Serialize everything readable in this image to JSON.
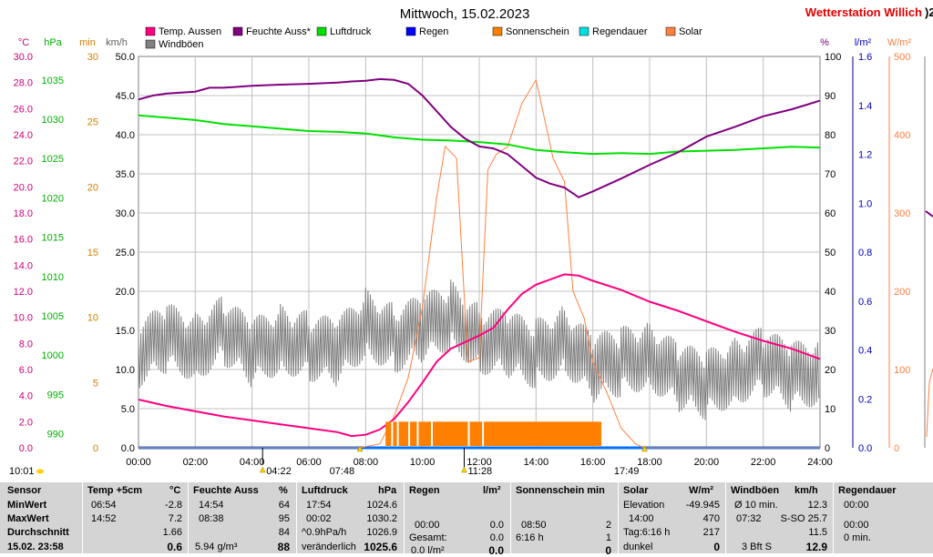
{
  "header": {
    "title": "Mittwoch, 15.02.2023",
    "station": "Wetterstation Willich",
    "station_suffix": ")2"
  },
  "legend": [
    {
      "label": "Temp. Aussen",
      "color": "#ff0080"
    },
    {
      "label": "Feuchte Auss*",
      "color": "#800080"
    },
    {
      "label": "Luftdruck",
      "color": "#00e000"
    },
    {
      "label": "Regen",
      "color": "#0000ff"
    },
    {
      "label": "Sonnenschein",
      "color": "#ff8000"
    },
    {
      "label": "Regendauer",
      "color": "#00e0e0"
    },
    {
      "label": "Solar",
      "color": "#ff8040"
    },
    {
      "label": "Windböen",
      "color": "#808080"
    }
  ],
  "axes": {
    "left_units": {
      "celsius": "°C",
      "hpa": "hPa",
      "min": "min",
      "kmh": "km/h"
    },
    "right_units": {
      "percent": "%",
      "rain": "l/m²",
      "solar": "W/m²"
    },
    "celsius_ticks": [
      "30.0",
      "28.0",
      "26.0",
      "24.0",
      "22.0",
      "20.0",
      "18.0",
      "16.0",
      "14.0",
      "12.0",
      "10.0",
      "8.0",
      "6.0",
      "4.0",
      "2.0",
      "0.0"
    ],
    "hpa_ticks": [
      "1035",
      "1030",
      "1025",
      "1020",
      "1015",
      "1010",
      "1005",
      "1000",
      "995",
      "990"
    ],
    "min_ticks": [
      "30",
      "25",
      "20",
      "15",
      "10",
      "5",
      "0"
    ],
    "kmh_ticks": [
      "50.0",
      "45.0",
      "40.0",
      "35.0",
      "30.0",
      "25.0",
      "20.0",
      "15.0",
      "10.0",
      "5.0",
      "0.0"
    ],
    "percent_ticks": [
      "100",
      "90",
      "80",
      "70",
      "60",
      "50",
      "40",
      "30",
      "20",
      "10",
      "0"
    ],
    "rain_ticks": [
      "1.6",
      "1.4",
      "1.2",
      "1.0",
      "0.8",
      "0.6",
      "0.4",
      "0.2",
      "0.0"
    ],
    "solar_ticks": [
      "500",
      "400",
      "300",
      "200",
      "100",
      "0"
    ],
    "time_ticks": [
      "00:00",
      "02:00",
      "04:00",
      "06:00",
      "08:00",
      "10:00",
      "12:00",
      "14:00",
      "16:00",
      "18:00",
      "20:00",
      "22:00",
      "24:00"
    ]
  },
  "events": {
    "start": "10:01",
    "moonrise": "04:22",
    "sunrise": "07:48",
    "noon": "11:28",
    "sunset": "17:49"
  },
  "chart_data": {
    "type": "line",
    "x_range": [
      "00:00",
      "24:00"
    ],
    "series": [
      {
        "name": "Temp. Aussen",
        "axis": "°C",
        "color": "#ff0080",
        "x": [
          0,
          1,
          2,
          3,
          4,
          5,
          6,
          7,
          7.5,
          8,
          8.5,
          9,
          9.5,
          10,
          10.5,
          11,
          11.5,
          12,
          12.5,
          13,
          13.5,
          14,
          14.5,
          15,
          15.5,
          16,
          17,
          18,
          19,
          20,
          21,
          22,
          23,
          24
        ],
        "y": [
          3.7,
          3.2,
          2.8,
          2.4,
          2.1,
          1.8,
          1.5,
          1.2,
          0.9,
          1.0,
          1.4,
          2.2,
          3.5,
          5.0,
          6.6,
          7.6,
          8.1,
          8.6,
          9.2,
          10.6,
          11.8,
          12.5,
          12.9,
          13.3,
          13.2,
          12.8,
          12.1,
          11.2,
          10.5,
          9.7,
          8.9,
          8.2,
          7.6,
          6.8
        ]
      },
      {
        "name": "Feuchte Auss*",
        "axis": "%",
        "color": "#800080",
        "x": [
          0,
          0.5,
          1,
          2,
          2.5,
          3,
          4,
          5,
          6,
          7,
          7.5,
          8,
          8.5,
          9,
          9.5,
          10,
          10.5,
          11,
          11.5,
          12,
          12.5,
          13,
          13.5,
          14,
          14.5,
          15,
          15.5,
          16,
          17,
          18,
          19,
          20,
          21,
          22,
          23,
          24
        ],
        "y": [
          89,
          90,
          90.5,
          91,
          92,
          92,
          92.5,
          92.8,
          93,
          93.3,
          93.6,
          93.8,
          94.2,
          94,
          93,
          90,
          86,
          82,
          79,
          77,
          76.5,
          75,
          72,
          69,
          67.5,
          66.5,
          64,
          65.5,
          68.8,
          72.3,
          75.5,
          79.5,
          82,
          84.7,
          86.5,
          88.7
        ]
      },
      {
        "name": "Luftdruck",
        "axis": "hPa",
        "color": "#00e000",
        "x": [
          0,
          1,
          2,
          3,
          4,
          5,
          6,
          7,
          8,
          9,
          10,
          11,
          12,
          13,
          14,
          15,
          16,
          17,
          18,
          19,
          20,
          21,
          22,
          23,
          24
        ],
        "y": [
          1030.5,
          1030.2,
          1029.9,
          1029.4,
          1029.1,
          1028.8,
          1028.5,
          1028.4,
          1028.2,
          1027.7,
          1027.4,
          1027.3,
          1027.1,
          1026.8,
          1026.1,
          1025.8,
          1025.6,
          1025.7,
          1025.6,
          1025.9,
          1026.0,
          1026.1,
          1026.3,
          1026.5,
          1026.4
        ]
      },
      {
        "name": "Solar",
        "axis": "W/m²",
        "color": "#ff8040",
        "x": [
          0,
          7.8,
          8.5,
          9,
          9.5,
          10,
          10.5,
          10.8,
          11.2,
          11.6,
          12,
          12.3,
          12.6,
          13,
          13.5,
          14,
          14.3,
          14.6,
          15,
          15.3,
          15.7,
          16,
          16.5,
          17,
          17.5,
          17.8,
          24
        ],
        "y": [
          0,
          0,
          5,
          40,
          90,
          180,
          320,
          385,
          370,
          110,
          115,
          355,
          375,
          385,
          440,
          470,
          420,
          370,
          340,
          200,
          165,
          110,
          70,
          25,
          5,
          0,
          0
        ]
      },
      {
        "name": "Windböen",
        "axis": "km/h",
        "color": "#808080",
        "x": [
          0,
          1,
          2,
          3,
          4,
          5,
          6,
          7,
          8,
          9,
          10,
          11,
          12,
          13,
          14,
          15,
          16,
          17,
          18,
          19,
          20,
          21,
          22,
          23,
          24
        ],
        "y": [
          12,
          14,
          13,
          15,
          12,
          14,
          13,
          12,
          16,
          14,
          15,
          17,
          14,
          13,
          12,
          14,
          10,
          11,
          12,
          9,
          8,
          10,
          11,
          9,
          10
        ]
      },
      {
        "name": "Sonnenschein",
        "axis": "min",
        "color": "#ff8000",
        "x": [
          8.7,
          16.3
        ],
        "y": [
          2,
          2
        ]
      },
      {
        "name": "Regen",
        "axis": "l/m²",
        "color": "#0000ff",
        "x": [
          0,
          24
        ],
        "y": [
          0,
          0
        ]
      }
    ]
  },
  "table": {
    "headers": {
      "sensor": "Sensor",
      "temp": "Temp +5cm",
      "temp_unit": "°C",
      "feuchte": "Feuchte Auss",
      "feuchte_unit": "%",
      "luftdruck": "Luftdruck",
      "luftdruck_unit": "hPa",
      "regen": "Regen",
      "regen_unit": "l/m²",
      "sonne": "Sonnenschein min",
      "solar": "Solar",
      "solar_unit": "W/m²",
      "wind": "Windböen",
      "wind_unit": "km/h",
      "regendauer": "Regendauer"
    },
    "rows": {
      "min": "MinWert",
      "max": "MaxWert",
      "avg": "Durchschnitt",
      "now": "15.02. 23:58"
    },
    "temp": {
      "min_time": "06:54",
      "min_val": "-2.8",
      "max_time": "14:52",
      "max_val": "7.2",
      "avg": "1.66",
      "now": "0.6"
    },
    "feuchte": {
      "min_time": "14:54",
      "min_val": "64",
      "max_time": "08:38",
      "max_val": "95",
      "avg": "84",
      "now_label": "5.94 g/m³",
      "now": "88"
    },
    "luftdruck": {
      "min_time": "17:54",
      "min_val": "1024.6",
      "max_time": "00:02",
      "max_val": "1030.2",
      "avg_label": "^0.9hPa/h",
      "avg": "1026.9",
      "now_label": "veränderlich",
      "now": "1025.6"
    },
    "regen": {
      "r2_time": "00:00",
      "r2_val": "0.0",
      "r3_label": "Gesamt:",
      "r3_val": "0.0",
      "r4_label": "0.0 l/m²",
      "r4_val": "0.0"
    },
    "sonne": {
      "r2_time": "08:50",
      "r2_val": "2",
      "r3_label": "6:16 h",
      "r3_val": "1",
      "r4_val": "0"
    },
    "solar": {
      "elev_label": "Elevation",
      "elev_val": "-49.945",
      "r2_time": "14:00",
      "r2_val": "470",
      "tag_label": "Tag:6:16 h",
      "tag_val": "217",
      "now_label": "dunkel",
      "now": "0"
    },
    "wind": {
      "avg10_label": "Ø 10 min.",
      "avg10_val": "12.3",
      "max_time": "07:32",
      "max_label": "S-SO 25.7",
      "avg": "11.5",
      "now_label": "3 Bft S",
      "now": "12.9"
    },
    "regendauer": {
      "r1": "00:00",
      "r2": "00:00",
      "r3": "0 min."
    }
  }
}
